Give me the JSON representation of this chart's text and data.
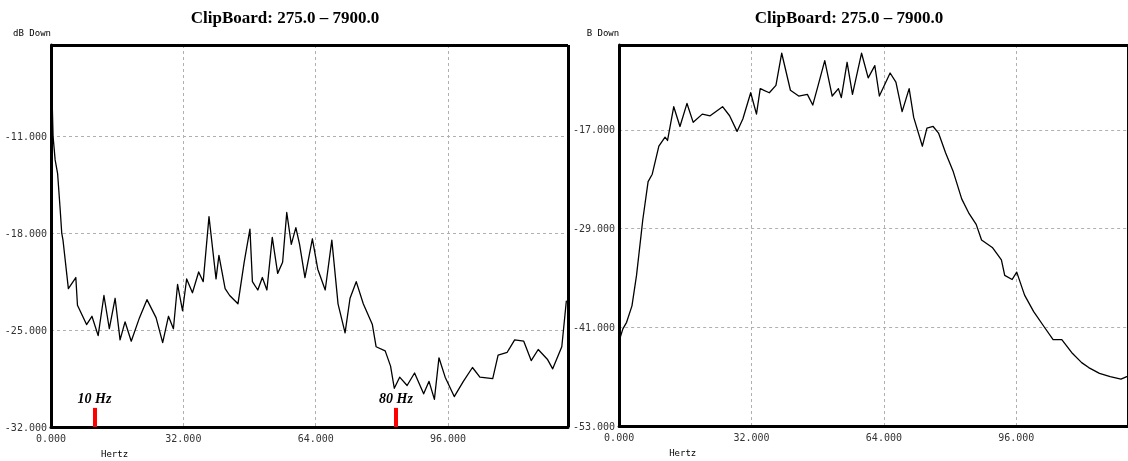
{
  "chart_data": [
    {
      "type": "line",
      "title": "ClipBoard: 275.0 – 7900.0",
      "xlabel": "Hertz",
      "ylabel": "dB Down",
      "xlim": [
        0,
        125
      ],
      "xticks": [
        {
          "value": 0,
          "label": "0.000"
        },
        {
          "value": 32,
          "label": "32.000"
        },
        {
          "value": 64,
          "label": "64.000"
        },
        {
          "value": 96,
          "label": "96.000"
        }
      ],
      "ylim": [
        -32,
        -4.4
      ],
      "yticks": [
        {
          "value": -32,
          "label": "-32.000"
        },
        {
          "value": -25,
          "label": "-25.000"
        },
        {
          "value": -18,
          "label": "-18.000"
        },
        {
          "value": -11,
          "label": "-11.000"
        }
      ],
      "grid": true,
      "marker": "none",
      "line_style": "solid",
      "ref_lines": [
        {
          "axis": "x",
          "value": 10.5,
          "label": "10 Hz",
          "color": "#ff0000"
        },
        {
          "axis": "x",
          "value": 83.4,
          "label": "80 Hz",
          "color": "#ff0000"
        }
      ],
      "series": [
        {
          "color": "#000000",
          "x": [
            0,
            0.2,
            0.5,
            1.0,
            1.6,
            2.2,
            2.6,
            2.9,
            4.2,
            6.0,
            6.4,
            8.6,
            9.9,
            11.4,
            12.8,
            14.1,
            15.5,
            16.7,
            17.9,
            19.4,
            21.4,
            23.2,
            25.4,
            27.0,
            28.4,
            29.6,
            30.6,
            31.8,
            32.8,
            34.2,
            35.7,
            36.8,
            38.2,
            39.9,
            40.6,
            42.1,
            43.2,
            45.2,
            46.7,
            48.1,
            48.7,
            50.0,
            51.1,
            52.2,
            53.5,
            54.8,
            56.0,
            57.0,
            58.1,
            59.2,
            60.1,
            61.4,
            63.2,
            64.5,
            66.3,
            67.9,
            69.4,
            71.1,
            72.3,
            73.8,
            75.5,
            77.7,
            78.6,
            80.8,
            82.1,
            83.0,
            84.3,
            86.1,
            87.9,
            90.1,
            91.4,
            92.7,
            93.8,
            95.3,
            97.5,
            99.7,
            101.9,
            103.7,
            106.8,
            108.1,
            110.3,
            112.1,
            114.3,
            116.1,
            117.8,
            120.0,
            121.3,
            123.5,
            124.6
          ],
          "values": [
            -5.0,
            -7.5,
            -11.0,
            -12.7,
            -13.7,
            -16.2,
            -18.0,
            -18.5,
            -22.0,
            -21.2,
            -23.2,
            -24.6,
            -24.0,
            -25.4,
            -22.5,
            -24.9,
            -22.7,
            -25.7,
            -24.4,
            -25.8,
            -24.1,
            -22.8,
            -24.1,
            -25.9,
            -24.0,
            -24.9,
            -21.7,
            -23.6,
            -21.3,
            -22.3,
            -20.8,
            -21.5,
            -16.8,
            -21.3,
            -19.6,
            -22.0,
            -22.5,
            -23.1,
            -20.1,
            -17.7,
            -21.5,
            -22.1,
            -21.2,
            -22.1,
            -18.3,
            -20.9,
            -20.1,
            -16.5,
            -18.8,
            -17.6,
            -18.8,
            -21.2,
            -18.4,
            -20.6,
            -22.1,
            -18.5,
            -23.1,
            -25.2,
            -22.7,
            -21.5,
            -23.1,
            -24.6,
            -26.2,
            -26.5,
            -27.6,
            -29.2,
            -28.4,
            -29.0,
            -28.1,
            -29.6,
            -28.7,
            -30.0,
            -27.0,
            -28.4,
            -29.8,
            -28.7,
            -27.7,
            -28.4,
            -28.5,
            -26.8,
            -26.6,
            -25.7,
            -25.8,
            -27.2,
            -26.4,
            -27.1,
            -27.8,
            -26.2,
            -22.9
          ]
        }
      ]
    },
    {
      "type": "line",
      "title": "ClipBoard: 275.0 – 7900.0",
      "xlabel": "Hertz",
      "ylabel": "B Down",
      "xlim": [
        0,
        123
      ],
      "xticks": [
        {
          "value": 0,
          "label": "0.000"
        },
        {
          "value": 32,
          "label": "32.000"
        },
        {
          "value": 64,
          "label": "64.000"
        },
        {
          "value": 96,
          "label": "96.000"
        }
      ],
      "ylim": [
        -53,
        -6.7
      ],
      "yticks": [
        {
          "value": -53,
          "label": "-53.000"
        },
        {
          "value": -41,
          "label": "-41.000"
        },
        {
          "value": -29,
          "label": "-29.000"
        },
        {
          "value": -17,
          "label": "-17.000"
        }
      ],
      "grid": true,
      "marker": "none",
      "line_style": "solid",
      "series": [
        {
          "color": "#000000",
          "x": [
            0.1,
            0.9,
            1.8,
            3.1,
            4.2,
            5.3,
            5.7,
            7.0,
            8.0,
            9.6,
            11.1,
            11.7,
            13.2,
            14.7,
            16.4,
            17.9,
            20.1,
            22.0,
            25.0,
            26.7,
            28.5,
            29.9,
            31.8,
            33.2,
            34.1,
            36.3,
            37.9,
            39.3,
            41.4,
            43.4,
            45.5,
            46.8,
            48.1,
            49.7,
            51.5,
            53.0,
            53.7,
            55.1,
            56.4,
            58.6,
            60.2,
            61.8,
            62.9,
            65.5,
            66.9,
            68.4,
            70.1,
            71.2,
            73.3,
            74.4,
            75.9,
            77.2,
            78.9,
            80.7,
            82.8,
            84.6,
            86.3,
            87.6,
            90.2,
            92.4,
            93.2,
            95.0,
            96.1,
            98.0,
            100.2,
            102.8,
            104.9,
            107.0,
            109.6,
            111.8,
            113.5,
            116.1,
            118.7,
            121.3,
            122.7
          ],
          "values": [
            -42.5,
            -41.2,
            -40.4,
            -38.4,
            -34.7,
            -29.8,
            -28.0,
            -23.3,
            -22.4,
            -19.0,
            -17.9,
            -18.3,
            -14.2,
            -16.6,
            -13.8,
            -16.1,
            -15.1,
            -15.3,
            -14.2,
            -15.3,
            -17.2,
            -15.7,
            -12.5,
            -15.1,
            -12.0,
            -12.5,
            -11.6,
            -7.7,
            -12.2,
            -12.9,
            -12.7,
            -14.0,
            -11.6,
            -8.6,
            -12.9,
            -12.0,
            -13.1,
            -8.8,
            -12.7,
            -7.7,
            -10.7,
            -9.2,
            -12.9,
            -10.1,
            -11.2,
            -14.8,
            -12.0,
            -15.5,
            -19.0,
            -16.8,
            -16.6,
            -17.4,
            -19.8,
            -22.0,
            -25.4,
            -27.2,
            -28.5,
            -30.4,
            -31.3,
            -32.8,
            -34.7,
            -35.2,
            -34.3,
            -37.1,
            -39.1,
            -41.0,
            -42.5,
            -42.5,
            -44.2,
            -45.3,
            -45.9,
            -46.6,
            -47.0,
            -47.3,
            -47.0
          ]
        }
      ]
    }
  ]
}
